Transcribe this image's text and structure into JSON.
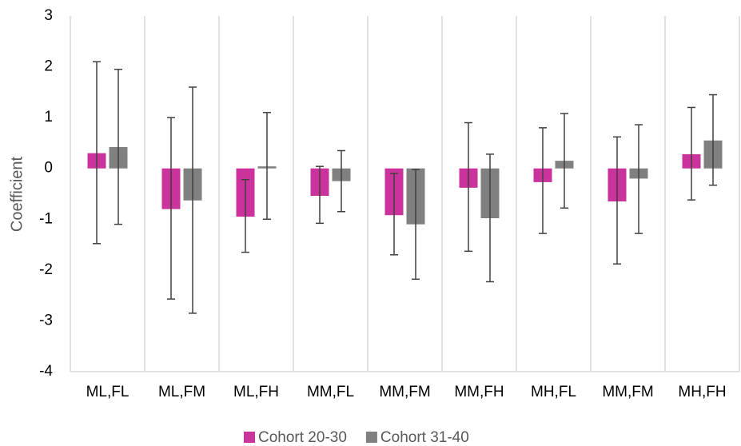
{
  "chart_data": {
    "type": "bar",
    "y_label": "Coefficient",
    "categories": [
      "ML,FL",
      "ML,FM",
      "ML,FH",
      "MM,FL",
      "MM,FM",
      "MM,FH",
      "MH,FL",
      "MM,FM",
      "MH,FH"
    ],
    "series": [
      {
        "name": "Cohort 20-30",
        "color": "#c9339b",
        "values": [
          0.3,
          -0.8,
          -0.95,
          -0.54,
          -0.92,
          -0.38,
          -0.27,
          -0.65,
          0.28
        ],
        "ci_low": [
          -1.48,
          -2.57,
          -1.65,
          -1.08,
          -1.7,
          -1.63,
          -1.28,
          -1.88,
          -0.62
        ],
        "ci_high": [
          2.1,
          1.0,
          -0.22,
          0.04,
          -0.1,
          0.9,
          0.8,
          0.62,
          1.2
        ]
      },
      {
        "name": "Cohort 31-40",
        "color": "#808080",
        "values": [
          0.42,
          -0.63,
          0.04,
          -0.25,
          -1.1,
          -0.98,
          0.15,
          -0.2,
          0.55
        ],
        "ci_low": [
          -1.1,
          -2.85,
          -1.0,
          -0.85,
          -2.18,
          -2.23,
          -0.78,
          -1.28,
          -0.33
        ],
        "ci_high": [
          1.95,
          1.6,
          1.1,
          0.35,
          -0.02,
          0.28,
          1.08,
          0.86,
          1.45
        ]
      }
    ],
    "ylim": [
      -4,
      3
    ],
    "yticks": [
      -4,
      -3,
      -2,
      -1,
      0,
      1,
      2,
      3
    ],
    "grid": "vertical",
    "legend": "bottom"
  }
}
